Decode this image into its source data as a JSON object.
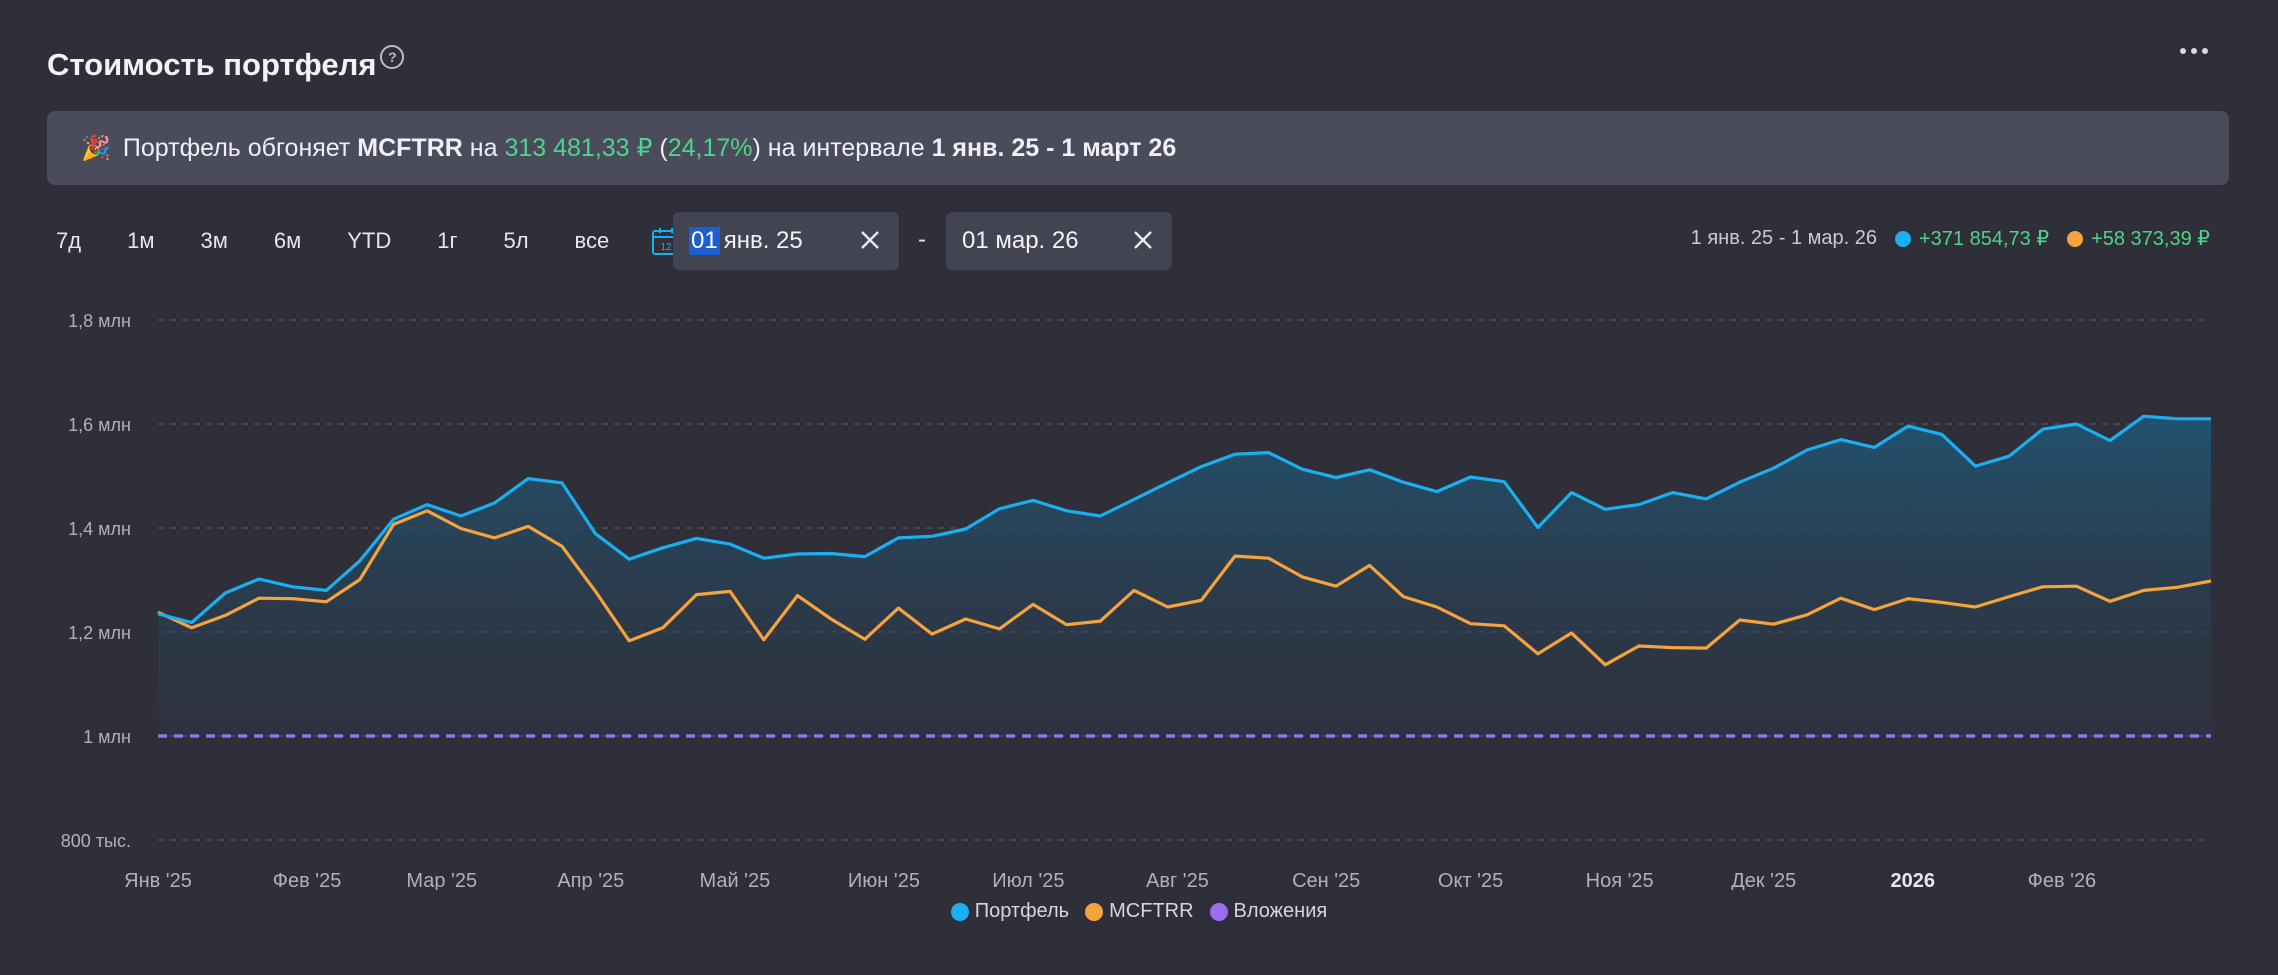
{
  "header": {
    "title": "Стоимость портфеля",
    "help": "?"
  },
  "banner": {
    "icon": "party-popper-icon",
    "t1": "Портфель обгоняет",
    "benchmark": "MCFTRR",
    "t2": "на",
    "amount": "313 481,33 ₽",
    "pct_open": "(",
    "pct": "24,17%",
    "pct_close": ")",
    "t3": "на интервале",
    "interval": "1 янв. 25 - 1 март 26"
  },
  "periods": [
    "7д",
    "1м",
    "3м",
    "6м",
    "YTD",
    "1г",
    "5л",
    "все"
  ],
  "date_from": {
    "sel": "01",
    "rest": "янв. 25"
  },
  "date_sep": "-",
  "date_to": {
    "value": "01 мар. 26"
  },
  "summary": {
    "range": "1 янв. 25 - 1 мар. 26",
    "portfolio_delta": "+371 854,73 ₽",
    "benchmark_delta": "+58 373,39 ₽"
  },
  "colors": {
    "portfolio": "#1aaff0",
    "benchmark": "#f5a33c",
    "investments": "#9a6cf0",
    "positive": "#4ed48a",
    "accent": "#1c5fd0"
  },
  "chart_data": {
    "type": "line",
    "y_ticks": [
      {
        "value": 800000,
        "label": "800 тыс."
      },
      {
        "value": 1000000,
        "label": "1 млн"
      },
      {
        "value": 1200000,
        "label": "1,2 млн"
      },
      {
        "value": 1400000,
        "label": "1,4 млн"
      },
      {
        "value": 1600000,
        "label": "1,6 млн"
      },
      {
        "value": 1800000,
        "label": "1,8 млн"
      }
    ],
    "ylim": [
      800000,
      1800000
    ],
    "x_labels": [
      {
        "label": "Янв '25",
        "index": 0,
        "bold": false
      },
      {
        "label": "Фев '25",
        "index": 4.43,
        "bold": false
      },
      {
        "label": "Мар '25",
        "index": 8.43,
        "bold": false
      },
      {
        "label": "Апр '25",
        "index": 12.86,
        "bold": false
      },
      {
        "label": "Май '25",
        "index": 17.14,
        "bold": false
      },
      {
        "label": "Июн '25",
        "index": 21.57,
        "bold": false
      },
      {
        "label": "Июл '25",
        "index": 25.86,
        "bold": false
      },
      {
        "label": "Авг '25",
        "index": 30.29,
        "bold": false
      },
      {
        "label": "Сен '25",
        "index": 34.71,
        "bold": false
      },
      {
        "label": "Окт '25",
        "index": 39.0,
        "bold": false
      },
      {
        "label": "Ноя '25",
        "index": 43.43,
        "bold": false
      },
      {
        "label": "Дек '25",
        "index": 47.71,
        "bold": false
      },
      {
        "label": "2026",
        "index": 52.14,
        "bold": true
      },
      {
        "label": "Фев '26",
        "index": 56.57,
        "bold": false
      }
    ],
    "x_count": 62,
    "series": [
      {
        "name": "Портфель",
        "color": "#1aaff0",
        "area": true,
        "values": [
          1235000,
          1218000,
          1275000,
          1302000,
          1287000,
          1280000,
          1337000,
          1417000,
          1445000,
          1423000,
          1448000,
          1495000,
          1487000,
          1389000,
          1340000,
          1362000,
          1380000,
          1369000,
          1342000,
          1350000,
          1351000,
          1345000,
          1381000,
          1384000,
          1398000,
          1437000,
          1453000,
          1433000,
          1423000,
          1455000,
          1487000,
          1518000,
          1542000,
          1545000,
          1513000,
          1497000,
          1512000,
          1488000,
          1470000,
          1498000,
          1489000,
          1401000,
          1468000,
          1436000,
          1445000,
          1468000,
          1456000,
          1488000,
          1515000,
          1550000,
          1570000,
          1555000,
          1596000,
          1580000,
          1519000,
          1538000,
          1590000,
          1600000,
          1568000,
          1615000,
          1610000,
          1610000
        ]
      },
      {
        "name": "MCFTRR",
        "color": "#f5a33c",
        "area": false,
        "values": [
          1238000,
          1208000,
          1232000,
          1265000,
          1264000,
          1258000,
          1301000,
          1407000,
          1433000,
          1399000,
          1381000,
          1403000,
          1365000,
          1278000,
          1183000,
          1208000,
          1272000,
          1278000,
          1185000,
          1270000,
          1225000,
          1186000,
          1246000,
          1196000,
          1225000,
          1206000,
          1253000,
          1214000,
          1221000,
          1280000,
          1248000,
          1261000,
          1346000,
          1342000,
          1306000,
          1288000,
          1328000,
          1268000,
          1248000,
          1216000,
          1212000,
          1158000,
          1198000,
          1137000,
          1173000,
          1170000,
          1169000,
          1223000,
          1215000,
          1233000,
          1265000,
          1243000,
          1264000,
          1257000,
          1248000,
          1268000,
          1287000,
          1288000,
          1259000,
          1280000,
          1286000,
          1298000
        ]
      },
      {
        "name": "Вложения",
        "color": "#9a6cf0",
        "dashed": true,
        "value": 1000000
      }
    ]
  }
}
